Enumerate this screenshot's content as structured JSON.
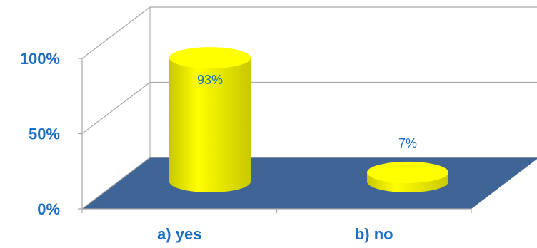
{
  "chart_data": {
    "type": "bar",
    "style": "3d-cylinder",
    "categories": [
      "a) yes",
      "b) no"
    ],
    "values": [
      93,
      7
    ],
    "data_labels": [
      "93%",
      "7%"
    ],
    "ylim": [
      0,
      100
    ],
    "yticks": [
      0,
      50,
      100
    ],
    "ytick_labels": [
      "0%",
      "50%",
      "100%"
    ],
    "grid": true,
    "legend": "none",
    "colors": {
      "bar": "#ffff00",
      "bar_shade": "#c8c800",
      "floor": "#3f6496",
      "label": "#1a6fc4",
      "axis": "#a6a6a6"
    }
  }
}
